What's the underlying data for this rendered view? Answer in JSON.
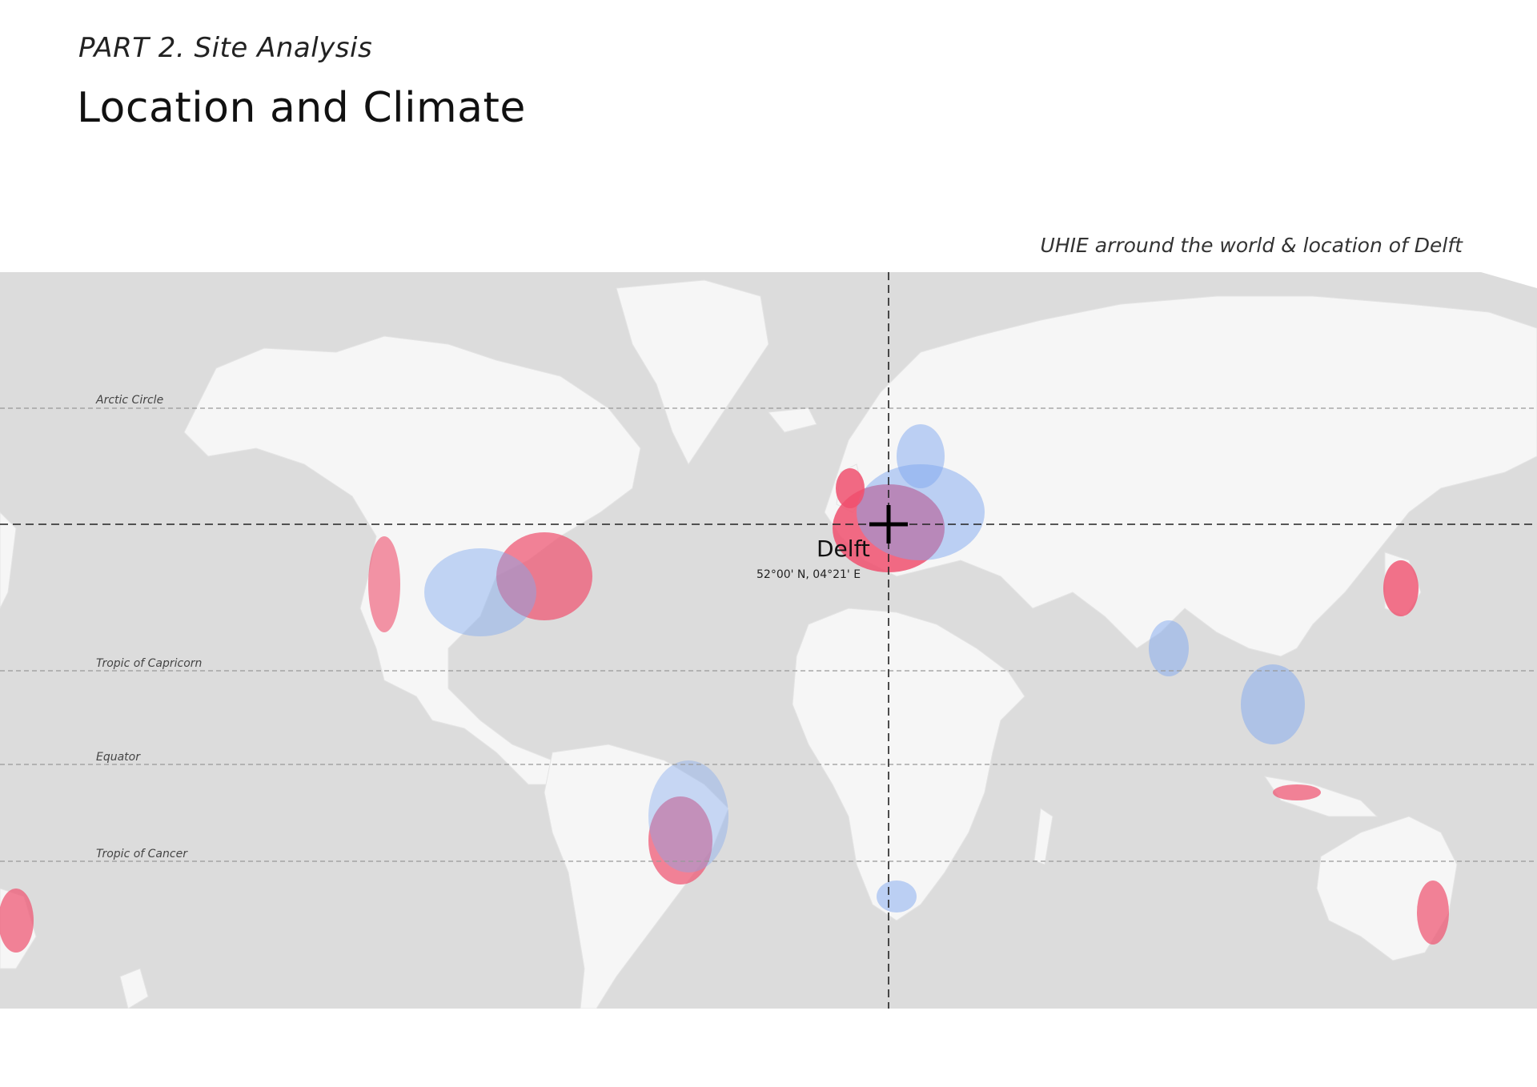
{
  "header": {
    "part": "PART 2. Site Analysis",
    "title": "Location and Climate"
  },
  "map": {
    "caption": "UHIE arround the world & location of Delft",
    "parallels": {
      "arctic_circle": "Arctic Circle",
      "tropic_capricorn": "Tropic of Capricorn",
      "equator": "Equator",
      "tropic_cancer": "Tropic of Cancer"
    },
    "marker": {
      "name": "Delft",
      "coordinates": "52°00' N, 04°21' E"
    },
    "colors": {
      "ocean": "#dcdcdc",
      "land": "#f6f6f6",
      "heat_high": "#f0506e",
      "heat_low": "#7fa8f0"
    }
  }
}
